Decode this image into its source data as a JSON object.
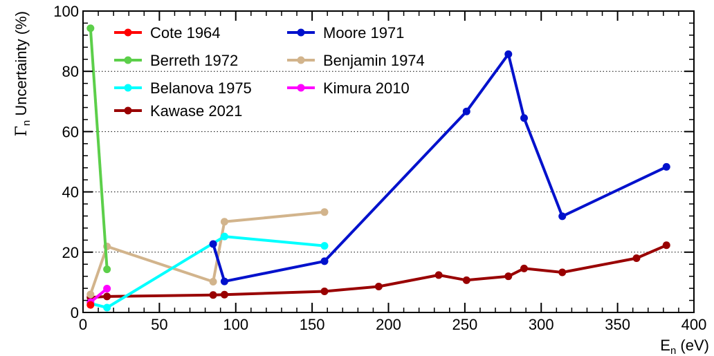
{
  "chart_data": {
    "type": "line",
    "xlabel": {
      "main": "E",
      "sub": "n",
      "unit": " (eV)"
    },
    "ylabel": {
      "symbol": "Γ",
      "sub": "n",
      "text": " Uncertainty (%)"
    },
    "xlim": [
      0,
      400
    ],
    "ylim": [
      0,
      100
    ],
    "x_ticks": [
      0,
      50,
      100,
      150,
      200,
      250,
      300,
      350,
      400
    ],
    "y_ticks": [
      0,
      20,
      40,
      60,
      80,
      100
    ],
    "grid": "horizontal dotted at 20, 40, 60, 80",
    "legend_position": "top-left, two columns",
    "series": [
      {
        "name": "Cote 1964",
        "color": "#ff0000",
        "x": [
          4.9
        ],
        "y": [
          2.5
        ]
      },
      {
        "name": "Berreth 1972",
        "color": "#5ccf4a",
        "x": [
          4.9,
          15.7
        ],
        "y": [
          94.3,
          14.3
        ]
      },
      {
        "name": "Belanova 1975",
        "color": "#00ffff",
        "x": [
          4.9,
          15.7,
          92.6,
          158.1
        ],
        "y": [
          3.0,
          1.6,
          25.2,
          22.1
        ]
      },
      {
        "name": "Kawase 2021",
        "color": "#990000",
        "x": [
          4.9,
          15.7,
          85.2,
          92.6,
          158.1,
          193.6,
          232.9,
          251.1,
          278.5,
          288.8,
          313.8,
          362.4,
          382.0
        ],
        "y": [
          5.0,
          5.3,
          5.8,
          5.9,
          7.0,
          8.6,
          12.4,
          10.7,
          12.0,
          14.6,
          13.3,
          18.0,
          22.3
        ]
      },
      {
        "name": "Moore 1971",
        "color": "#0011cc",
        "x": [
          85.2,
          92.6,
          158.1,
          251.1,
          278.5,
          288.8,
          313.8,
          382.0
        ],
        "y": [
          22.7,
          10.3,
          17.0,
          66.7,
          85.7,
          64.5,
          31.9,
          48.3
        ]
      },
      {
        "name": "Benjamin 1974",
        "color": "#d2b48c",
        "x": [
          4.9,
          15.7,
          85.2,
          92.6,
          158.1
        ],
        "y": [
          6.0,
          21.9,
          10.2,
          30.1,
          33.3
        ]
      },
      {
        "name": "Kimura 2010",
        "color": "#ff00ff",
        "x": [
          4.9,
          15.7
        ],
        "y": [
          3.4,
          7.9
        ]
      }
    ],
    "legend_order": [
      "Cote 1964",
      "Moore 1971",
      "Berreth 1972",
      "Benjamin 1974",
      "Belanova 1975",
      "Kimura 2010",
      "Kawase 2021"
    ]
  }
}
